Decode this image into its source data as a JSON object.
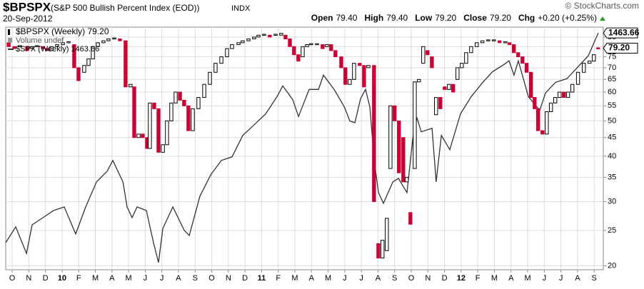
{
  "chart_data": {
    "type": "candlestick",
    "title": "$BPSPX",
    "subtitle": "(S&P 500 Bullish Percent Index (EOD))",
    "exchange": "INDX",
    "date": "20-Sep-2012",
    "watermark": "© StockCharts.com",
    "quote": [
      {
        "label": "Open",
        "value": "79.40"
      },
      {
        "label": "High",
        "value": "79.40"
      },
      {
        "label": "Low",
        "value": "79.20"
      },
      {
        "label": "Close",
        "value": "79.20"
      },
      {
        "label": "Chg",
        "value": "+0.20 (+0.25%)"
      }
    ],
    "volume_label": "Volume undef",
    "log_scale": true,
    "grid": true,
    "xlim": [
      -0.39,
      35.55
    ],
    "xticks": [
      {
        "value": 0,
        "label": "O"
      },
      {
        "value": 1,
        "label": "N"
      },
      {
        "value": 2,
        "label": "D"
      },
      {
        "value": 3,
        "label": "10"
      },
      {
        "value": 4,
        "label": "F"
      },
      {
        "value": 5,
        "label": "M"
      },
      {
        "value": 6,
        "label": "A"
      },
      {
        "value": 7,
        "label": "M"
      },
      {
        "value": 8,
        "label": "J"
      },
      {
        "value": 9,
        "label": "J"
      },
      {
        "value": 10,
        "label": "A"
      },
      {
        "value": 11,
        "label": "S"
      },
      {
        "value": 12,
        "label": "O"
      },
      {
        "value": 13,
        "label": "N"
      },
      {
        "value": 14,
        "label": "D"
      },
      {
        "value": 15,
        "label": "11"
      },
      {
        "value": 16,
        "label": "F"
      },
      {
        "value": 17,
        "label": "M"
      },
      {
        "value": 18,
        "label": "A"
      },
      {
        "value": 19,
        "label": "M"
      },
      {
        "value": 20,
        "label": "J"
      },
      {
        "value": 21,
        "label": "J"
      },
      {
        "value": 22,
        "label": "A"
      },
      {
        "value": 23,
        "label": "S"
      },
      {
        "value": 24,
        "label": "O"
      },
      {
        "value": 25,
        "label": "N"
      },
      {
        "value": 26,
        "label": "D"
      },
      {
        "value": 27,
        "label": "12"
      },
      {
        "value": 28,
        "label": "F"
      },
      {
        "value": 29,
        "label": "M"
      },
      {
        "value": 30,
        "label": "A"
      },
      {
        "value": 31,
        "label": "M"
      },
      {
        "value": 32,
        "label": "J"
      },
      {
        "value": 33,
        "label": "J"
      },
      {
        "value": 34,
        "label": "A"
      },
      {
        "value": 35,
        "label": "S"
      }
    ],
    "year_ticks": [
      "10",
      "11",
      "12"
    ],
    "ylim": [
      19.5,
      90.5
    ],
    "yticks": [
      20,
      25,
      30,
      35,
      40,
      45,
      50,
      55,
      60,
      65,
      70,
      75,
      80,
      85
    ],
    "y2lim": [
      1000,
      1475
    ],
    "up_color": "#ffffff",
    "down_color": "#cc0033",
    "series": [
      {
        "name": "$BPSPX (Weekly) 79.20",
        "color": "#000000",
        "last_label": "79.20",
        "x": [
          -0.21,
          0.13,
          0.47,
          0.9,
          1.2,
          1.5,
          1.85,
          2.1,
          2.36,
          2.7,
          3.05,
          3.39,
          3.73,
          3.99,
          4.33,
          4.59,
          4.85,
          5.15,
          5.49,
          5.79,
          6.14,
          6.48,
          6.82,
          7.12,
          7.34,
          7.6,
          7.85,
          8.11,
          8.28,
          8.54,
          8.8,
          9.06,
          9.31,
          9.57,
          9.83,
          10.09,
          10.34,
          10.6,
          10.86,
          11.2,
          11.55,
          11.89,
          12.23,
          12.58,
          12.92,
          13.22,
          13.61,
          13.86,
          14.21,
          14.55,
          14.81,
          15.15,
          15.49,
          15.84,
          16.18,
          16.44,
          16.7,
          16.95,
          17.21,
          17.47,
          17.73,
          17.98,
          18.33,
          18.67,
          18.93,
          19.18,
          19.44,
          19.79,
          20.04,
          20.3,
          20.56,
          20.9,
          21.16,
          21.42,
          21.76,
          22.02,
          22.27,
          22.53,
          22.75,
          23.0,
          23.26,
          23.52,
          23.73,
          23.95,
          24.21,
          24.46,
          24.72,
          24.98,
          25.24,
          25.49,
          25.75,
          26.01,
          26.27,
          26.52,
          26.78,
          27.04,
          27.3,
          27.6,
          27.94,
          28.28,
          28.63,
          28.97,
          29.31,
          29.66,
          29.91,
          30.17,
          30.43,
          30.69,
          30.94,
          31.2,
          31.42,
          31.63,
          31.89,
          32.15,
          32.4,
          32.66,
          32.92,
          33.18,
          33.43,
          33.69,
          34.03,
          34.38,
          34.72,
          34.98,
          35.24
        ],
        "open": [
          82,
          80,
          80,
          80,
          79,
          80,
          80,
          79,
          78,
          80,
          81,
          82,
          81,
          70,
          68,
          71,
          74,
          80,
          82,
          83,
          84,
          84,
          83,
          62,
          62,
          45,
          46,
          45,
          42,
          56,
          54,
          41,
          43,
          50,
          56,
          60,
          57,
          55,
          47,
          54,
          58,
          63,
          68,
          72,
          75,
          79,
          81,
          82,
          83,
          84,
          85,
          86,
          86,
          86,
          86,
          86,
          84,
          80,
          76,
          75,
          80,
          81,
          81,
          81,
          80,
          81,
          78,
          75,
          70,
          63,
          65,
          72,
          71,
          70,
          71,
          23,
          21,
          22,
          37,
          55,
          50,
          45,
          34,
          28,
          37,
          64,
          72,
          78,
          75,
          52,
          58,
          62,
          61,
          63,
          65,
          70,
          72,
          77,
          80,
          82,
          83,
          83,
          83,
          82,
          82,
          81,
          77,
          75,
          72,
          68,
          58,
          54,
          47,
          46,
          53,
          56,
          58,
          60,
          58,
          60,
          63,
          68,
          72,
          73,
          79.4
        ],
        "close": [
          80,
          79,
          80.5,
          78,
          80,
          80.5,
          79,
          78,
          80,
          81,
          82,
          82.5,
          70,
          64.5,
          71,
          74,
          80,
          82,
          83,
          84,
          84.5,
          83,
          62,
          63,
          45,
          46,
          45,
          42,
          56,
          54,
          41,
          43,
          50,
          56,
          60,
          57,
          55,
          47,
          54,
          58,
          63,
          68,
          72,
          75,
          79,
          81,
          82,
          83,
          84,
          85,
          86,
          86.5,
          85,
          86.5,
          87,
          84,
          80,
          76,
          73,
          80,
          81,
          81.5,
          81.5,
          79,
          81,
          78,
          75,
          70,
          63,
          65,
          72,
          71,
          62,
          71,
          30,
          21,
          23.5,
          27,
          55,
          50,
          36,
          34,
          35,
          26,
          64,
          65,
          80,
          76,
          70,
          58,
          54,
          61,
          63,
          60,
          70,
          72,
          77,
          80,
          82,
          83,
          83.5,
          83.5,
          82,
          82.5,
          81,
          77,
          75,
          72,
          68,
          58,
          54,
          47,
          46,
          53,
          56,
          58,
          60,
          58,
          60,
          63,
          68,
          72,
          73,
          76,
          79.2
        ]
      },
      {
        "name": "$SPX (Weekly) 1463.66",
        "color": "#333333",
        "axis": "y2",
        "last_label": "1463.66",
        "x": [
          -0.39,
          0.21,
          0.86,
          1.2,
          1.85,
          2.49,
          3.13,
          3.82,
          4.42,
          5.07,
          5.71,
          6.05,
          6.66,
          6.91,
          7.21,
          7.51,
          8.07,
          8.5,
          8.8,
          9.06,
          9.66,
          10.35,
          10.65,
          11.29,
          11.94,
          12.58,
          13.22,
          13.87,
          14.56,
          15.24,
          15.93,
          16.27,
          16.87,
          17.22,
          17.86,
          18.42,
          18.72,
          19.36,
          19.97,
          20.31,
          20.61,
          20.95,
          21.25,
          21.51,
          21.77,
          22.03,
          22.33,
          22.89,
          23.23,
          23.74,
          24.09,
          24.34,
          24.6,
          25.25,
          25.5,
          25.81,
          26.32,
          26.96,
          27.61,
          28.3,
          28.9,
          29.58,
          29.88,
          30.18,
          30.44,
          31.04,
          31.73,
          32.07,
          32.68,
          33.36,
          33.96,
          34.65,
          35.25
        ],
        "values": [
          1053,
          1084,
          1032,
          1088,
          1102,
          1116,
          1123,
          1070,
          1123,
          1172,
          1193,
          1214,
          1172,
          1123,
          1102,
          1123,
          1116,
          1053,
          1014,
          1081,
          1123,
          1077,
          1067,
          1144,
          1186,
          1214,
          1221,
          1263,
          1284,
          1305,
          1339,
          1360,
          1333,
          1300,
          1353,
          1353,
          1381,
          1353,
          1319,
          1291,
          1288,
          1335,
          1353,
          1319,
          1214,
          1151,
          1130,
          1172,
          1179,
          1151,
          1256,
          1298,
          1270,
          1277,
          1172,
          1263,
          1235,
          1305,
          1339,
          1367,
          1388,
          1402,
          1409,
          1381,
          1409,
          1339,
          1312,
          1346,
          1367,
          1374,
          1395,
          1419,
          1463.66
        ]
      }
    ]
  }
}
